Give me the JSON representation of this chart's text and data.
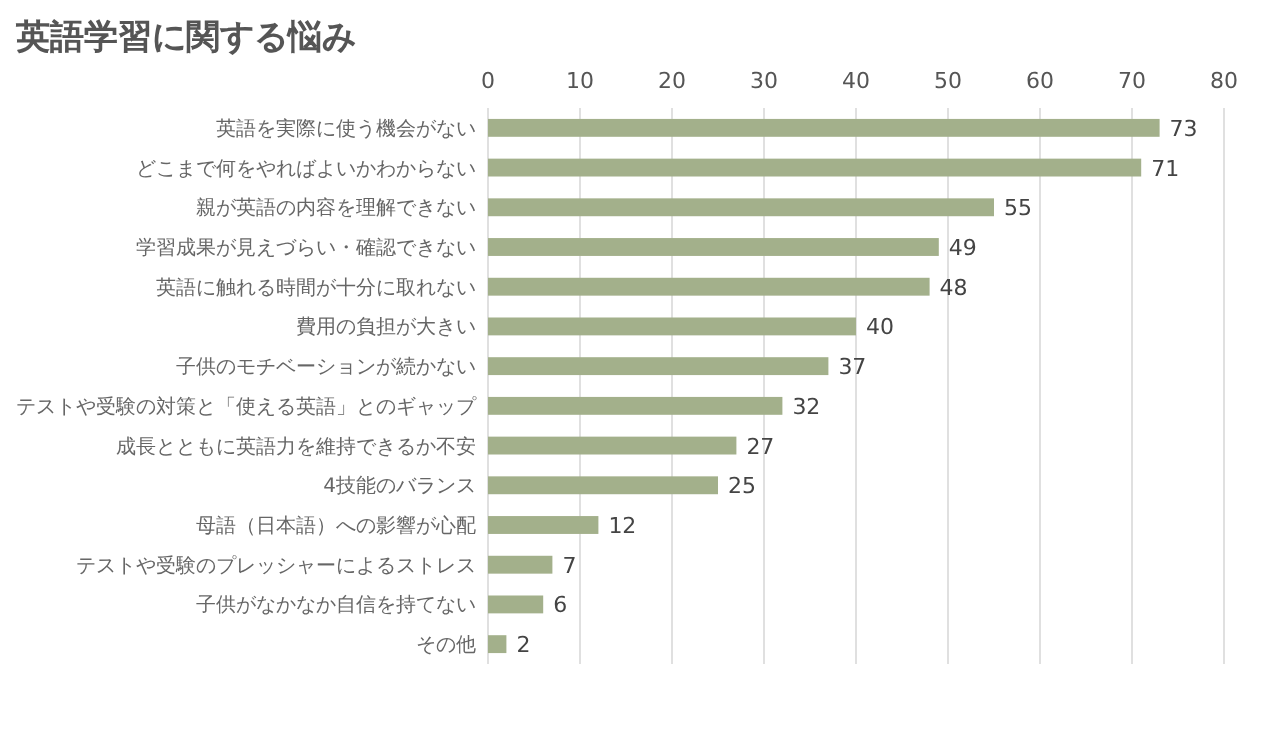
{
  "chart_data": {
    "type": "bar",
    "orientation": "horizontal",
    "title": "英語学習に関する悩み",
    "categories": [
      "英語を実際に使う機会がない",
      "どこまで何をやればよいかわからない",
      "親が英語の内容を理解できない",
      "学習成果が見えづらい・確認できない",
      "英語に触れる時間が十分に取れない",
      "費用の負担が大きい",
      "子供のモチベーションが続かない",
      "テストや受験の対策と「使える英語」とのギャップ",
      "成長とともに英語力を維持できるか不安",
      "4技能のバランス",
      "母語（日本語）への影響が心配",
      "テストや受験のプレッシャーによるストレス",
      "子供がなかなか自信を持てない",
      "その他"
    ],
    "values": [
      73,
      71,
      55,
      49,
      48,
      40,
      37,
      32,
      27,
      25,
      12,
      7,
      6,
      2
    ],
    "color": "#a3b08b",
    "xlim": [
      0,
      80
    ],
    "xticks": [
      0,
      10,
      20,
      30,
      40,
      50,
      60,
      70,
      80
    ],
    "grid": "x",
    "data_labels": true
  }
}
